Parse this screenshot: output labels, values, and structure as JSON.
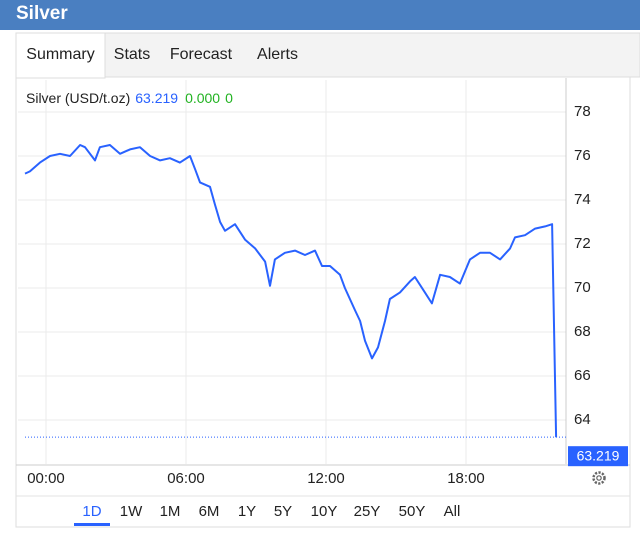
{
  "header": {
    "title": "Silver"
  },
  "tabs": [
    "Summary",
    "Stats",
    "Forecast",
    "Alerts"
  ],
  "selected_tab": 0,
  "chart_data": {
    "type": "line",
    "last_price": 63.219,
    "change": "0.000",
    "change_pct": "0",
    "x": [
      -0.9,
      -0.69,
      -0.26,
      0.17,
      0.6,
      1.03,
      1.46,
      1.67,
      2.1,
      2.31,
      2.74,
      3.17,
      3.6,
      4.03,
      4.46,
      4.89,
      5.31,
      5.74,
      6.17,
      6.39,
      6.6,
      7.03,
      7.24,
      7.46,
      7.67,
      8.1,
      8.53,
      8.96,
      9.39,
      9.6,
      9.81,
      10.24,
      10.67,
      11.1,
      11.53,
      11.83,
      12.17,
      12.6,
      12.81,
      13.24,
      13.46,
      13.67,
      13.97,
      14.23,
      14.53,
      14.74,
      15.17,
      15.6,
      15.81,
      16.24,
      16.54,
      16.89,
      17.31,
      17.74,
      18.17,
      18.6,
      19.03,
      19.46,
      19.89,
      20.1,
      20.53,
      20.96,
      21.39,
      21.69,
      21.86
    ],
    "series": [
      {
        "name": "Silver (USD/t.oz)",
        "color": "#2962ff",
        "values": [
          75.2,
          75.3,
          75.7,
          76.0,
          76.1,
          76.0,
          76.5,
          76.4,
          75.8,
          76.4,
          76.5,
          76.1,
          76.3,
          76.4,
          76.0,
          75.8,
          75.9,
          75.7,
          76.0,
          75.4,
          74.8,
          74.6,
          73.8,
          73.0,
          72.6,
          72.9,
          72.2,
          71.8,
          71.2,
          70.1,
          71.3,
          71.6,
          71.7,
          71.5,
          71.7,
          71.0,
          71.0,
          70.6,
          70.0,
          69.0,
          68.5,
          67.6,
          66.8,
          67.3,
          68.5,
          69.5,
          69.8,
          70.3,
          70.5,
          69.8,
          69.3,
          70.6,
          70.5,
          70.2,
          71.3,
          71.6,
          71.6,
          71.3,
          71.8,
          72.3,
          72.4,
          72.7,
          72.8,
          72.9,
          63.219
        ]
      }
    ],
    "xlim": [
      -1.2,
      22.2
    ],
    "xticks": [
      {
        "value": 0,
        "label": "00:00"
      },
      {
        "value": 6,
        "label": "06:00"
      },
      {
        "value": 12,
        "label": "12:00"
      },
      {
        "value": 18,
        "label": "18:00"
      }
    ],
    "ylim": [
      62,
      79
    ],
    "yticks": [
      64,
      66,
      68,
      70,
      72,
      74,
      76,
      78
    ],
    "grid": true
  },
  "ranges": [
    "1D",
    "1W",
    "1M",
    "6M",
    "1Y",
    "5Y",
    "10Y",
    "25Y",
    "50Y",
    "All"
  ],
  "selected_range": 0
}
